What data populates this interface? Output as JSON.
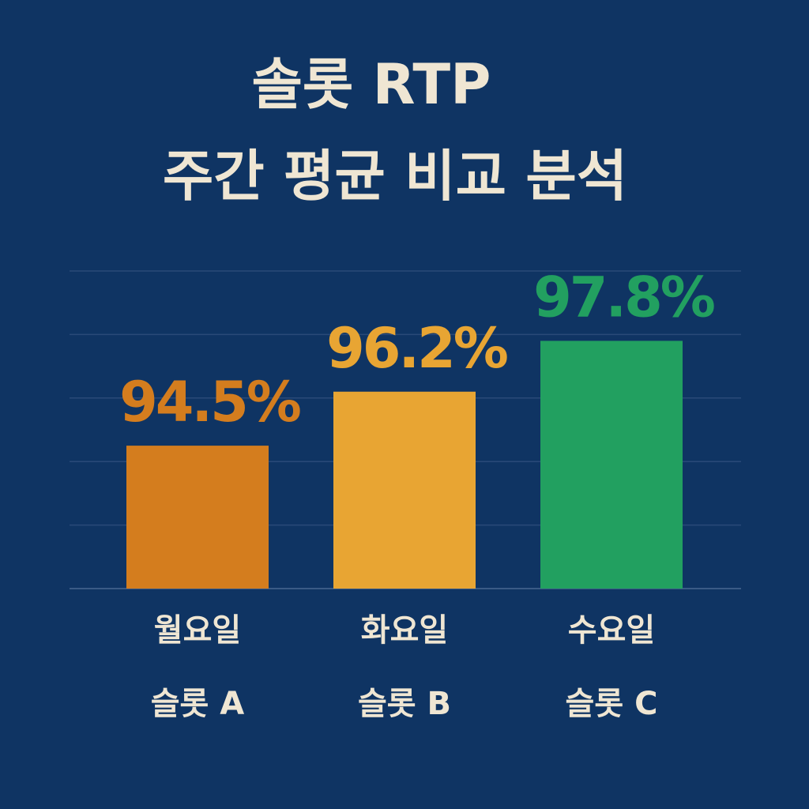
{
  "chart_data": {
    "type": "bar",
    "title": [
      "솔롯 RTP",
      "주간 평균 비교 분석"
    ],
    "categories": [
      [
        "월요일",
        "슬롯 A"
      ],
      [
        "화요일",
        "슬롯 B"
      ],
      [
        "수요일",
        "슬롯 C"
      ]
    ],
    "values": [
      94.5,
      96.2,
      97.8
    ],
    "value_labels": [
      "94.5%",
      "96.2%",
      "97.8%"
    ],
    "colors": [
      "#d47d1e",
      "#e8a533",
      "#22a060"
    ],
    "ylim": [
      90,
      100
    ],
    "yticks": [
      90,
      92,
      94,
      96,
      98,
      100
    ],
    "grid": true
  }
}
